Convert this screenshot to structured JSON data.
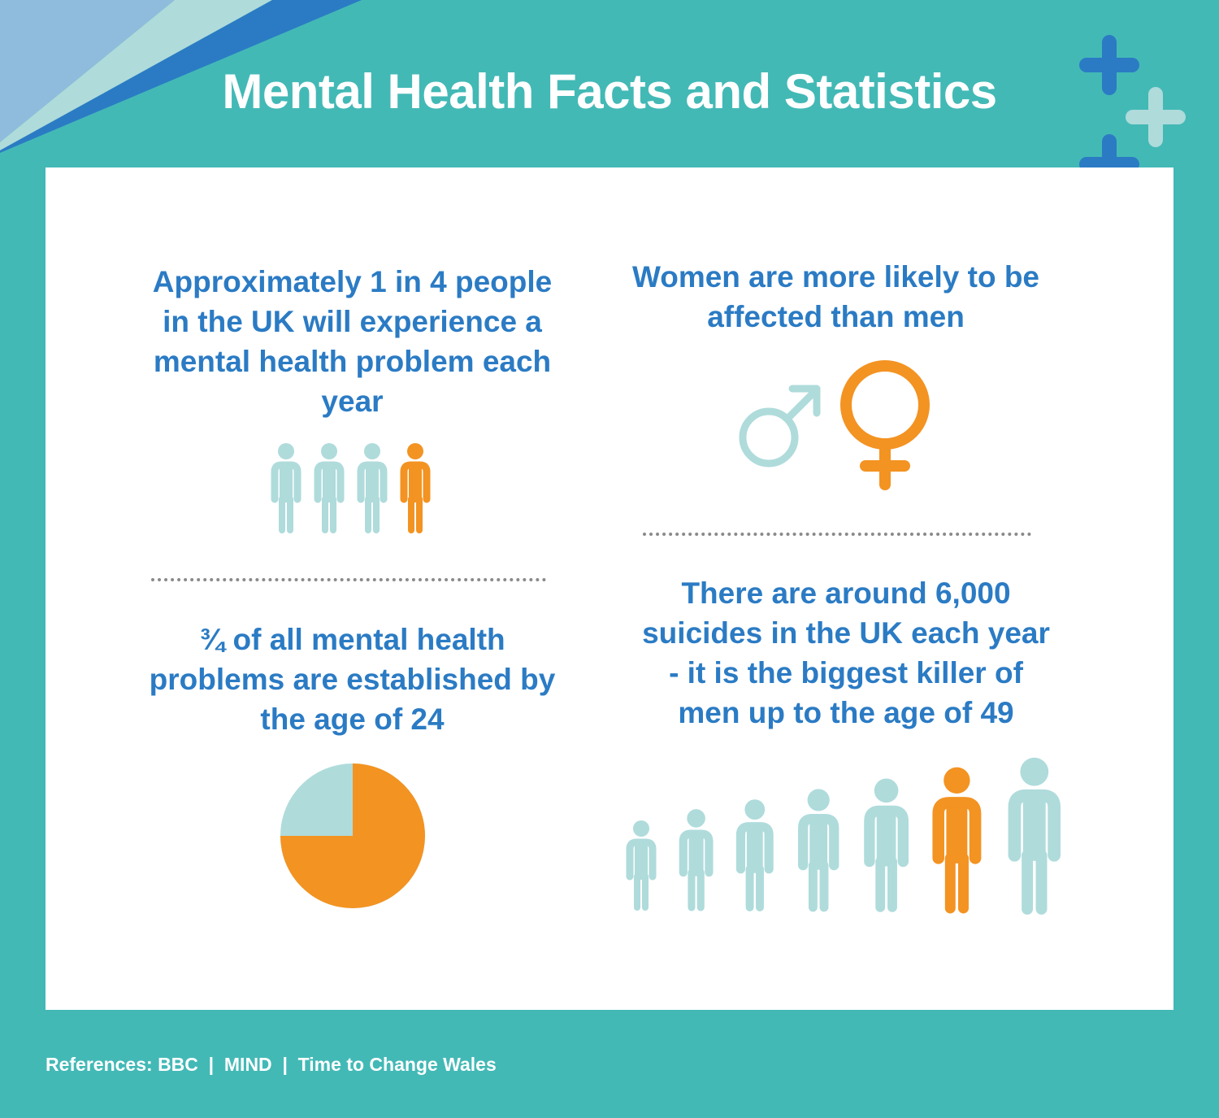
{
  "header": {
    "title": "Mental Health Facts and Statistics"
  },
  "facts": {
    "one_in_four": {
      "text": "Approximately 1 in 4 people in the UK will experience a mental health problem each year",
      "people_icons": [
        "person-icon",
        "person-icon",
        "person-icon",
        "person-icon"
      ],
      "highlighted_index": 3
    },
    "women": {
      "text": "Women are more likely to be affected than men",
      "icons": [
        "male-symbol-icon",
        "female-symbol-icon"
      ]
    },
    "three_quarters": {
      "text": "¾ of all mental health problems are established by the age of 24",
      "pie_fraction": 0.75
    },
    "suicides": {
      "text": "There are around 6,000 suicides in the UK each year - it is the biggest killer of men up to the age of 49",
      "people_icons": [
        "person-icon",
        "person-icon",
        "person-icon",
        "person-icon",
        "person-icon",
        "person-icon",
        "person-icon"
      ],
      "highlighted_index": 5
    }
  },
  "footer": {
    "references": "References: BBC  |  MIND  |  Time to Change Wales"
  },
  "colors": {
    "background": "#43b9b6",
    "blue_text": "#2b7bc4",
    "orange": "#f39322",
    "light_teal": "#afdbdb",
    "dark_blue": "#2b7bc4",
    "white": "#ffffff"
  }
}
